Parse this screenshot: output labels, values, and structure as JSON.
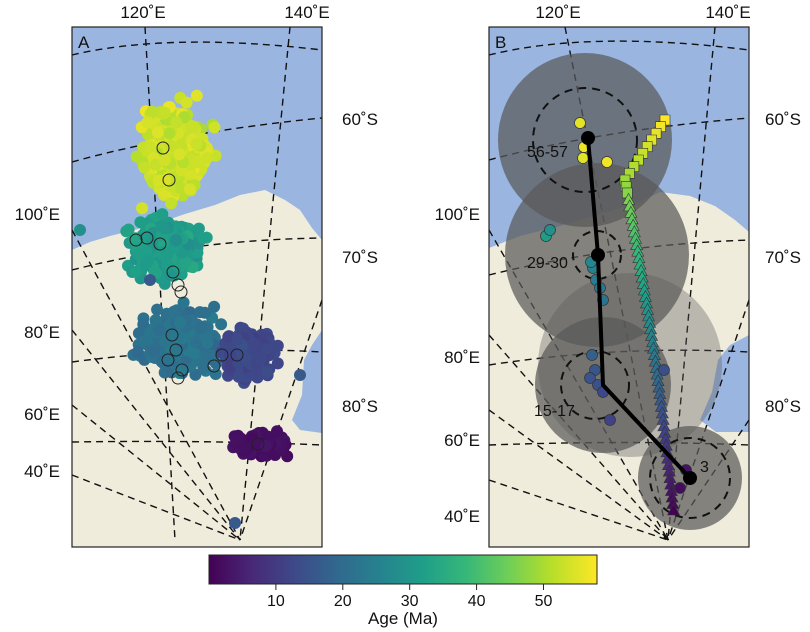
{
  "panels": [
    {
      "id": "A",
      "label": "A",
      "top_lon_labels": [
        "120˚E",
        "140˚E"
      ],
      "left_lon_labels": [
        "100˚E",
        "80˚E",
        "60˚E",
        "40˚E"
      ],
      "right_lat_labels": [
        "60˚S",
        "70˚S",
        "80˚S"
      ]
    },
    {
      "id": "B",
      "label": "B",
      "top_lon_labels": [
        "120˚E",
        "140˚E"
      ],
      "left_lon_labels": [
        "100˚E",
        "80˚E",
        "60˚E",
        "40˚E"
      ],
      "right_lat_labels": [
        "60˚S",
        "70˚S",
        "80˚S"
      ],
      "pole_labels": [
        "56-57",
        "29-30",
        "15-17",
        "3"
      ]
    }
  ],
  "colorbar": {
    "label": "Age (Ma)",
    "ticks": [
      "10",
      "20",
      "30",
      "40",
      "50"
    ],
    "tick_values": [
      10,
      20,
      30,
      40,
      50
    ],
    "min": 0,
    "max": 58,
    "colors": [
      "#440154",
      "#482878",
      "#3e4989",
      "#31688e",
      "#26828e",
      "#1f9e89",
      "#35b779",
      "#6ece58",
      "#b5de2b",
      "#fde725"
    ]
  },
  "map_colors": {
    "ocean": "#9ab6e0",
    "land": "#efecdc",
    "pole_circle": "#595959"
  }
}
